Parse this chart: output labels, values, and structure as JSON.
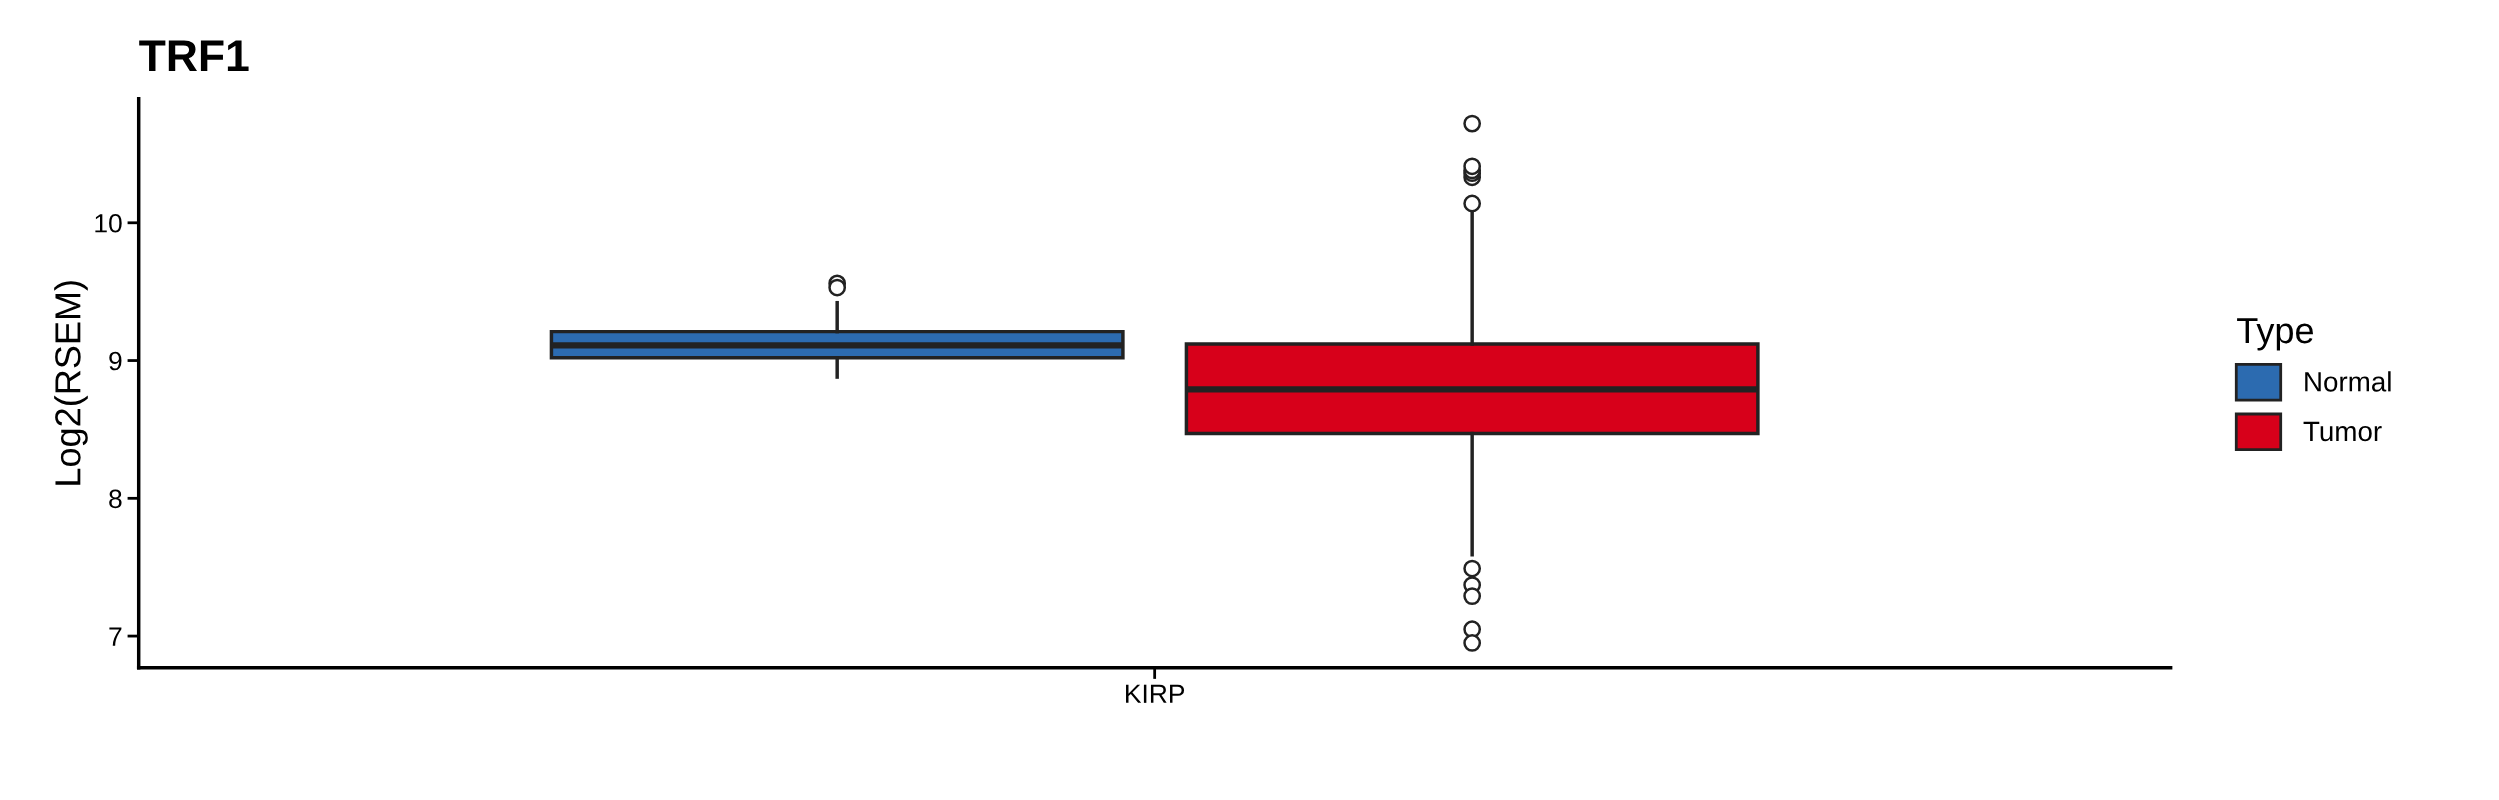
{
  "chart_data": {
    "type": "box",
    "title": "TRF1",
    "ylabel": "Log2(RSEM)",
    "legend_title": "Type",
    "categories": [
      "KIRP"
    ],
    "series": [
      {
        "name": "Normal",
        "color": "#2c6bb0",
        "boxes": [
          {
            "low": 8.88,
            "q1": 9.02,
            "median": 9.11,
            "q3": 9.21,
            "high": 9.42,
            "outliers": [
              9.56,
              9.53
            ]
          }
        ]
      },
      {
        "name": "Tumor",
        "color": "#d7001a",
        "boxes": [
          {
            "low": 7.59,
            "q1": 8.47,
            "median": 8.79,
            "q3": 9.12,
            "high": 10.07,
            "outliers": [
              10.14,
              10.33,
              10.36,
              10.38,
              10.41,
              10.72,
              7.49,
              7.37,
              7.29,
              7.05,
              6.95
            ]
          }
        ]
      }
    ],
    "ylim": [
      6.77,
      10.9
    ],
    "yticks": [
      7,
      8,
      9,
      10
    ],
    "grid": false,
    "legend": "right"
  }
}
